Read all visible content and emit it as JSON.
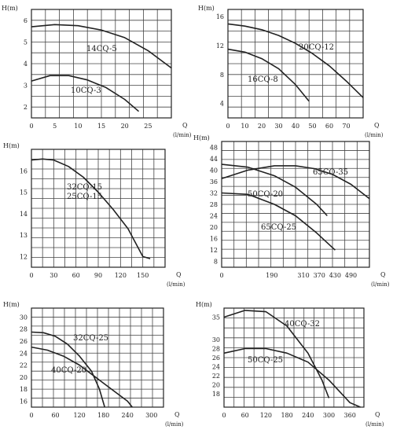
{
  "chart_data": [
    {
      "type": "line",
      "ylabel": "H(m)",
      "xlabel": "Q",
      "xunit": "(l/min)",
      "xlim": [
        0,
        30
      ],
      "ylim": [
        1.5,
        6.5
      ],
      "xticks": [
        0,
        5,
        10,
        15,
        20,
        25
      ],
      "yticks": [
        2,
        3,
        4,
        5,
        6
      ],
      "grid": true,
      "series": [
        {
          "name": "14CQ-5",
          "x": [
            0,
            5,
            10,
            15,
            20,
            25,
            30
          ],
          "y": [
            5.7,
            5.8,
            5.75,
            5.55,
            5.2,
            4.6,
            3.8
          ]
        },
        {
          "name": "10CQ-3",
          "x": [
            0,
            4,
            8,
            12,
            16,
            20,
            23
          ],
          "y": [
            3.2,
            3.45,
            3.45,
            3.25,
            2.9,
            2.35,
            1.8
          ]
        }
      ]
    },
    {
      "type": "line",
      "ylabel": "H(m)",
      "xlabel": "Q",
      "xunit": "(l/min)",
      "xlim": [
        0,
        80
      ],
      "ylim": [
        2,
        17
      ],
      "xticks": [
        0,
        10,
        20,
        30,
        40,
        50,
        60,
        70
      ],
      "yticks": [
        4,
        8,
        12,
        16
      ],
      "grid": true,
      "series": [
        {
          "name": "20CQ-12",
          "x": [
            0,
            10,
            20,
            30,
            40,
            50,
            60,
            70,
            80
          ],
          "y": [
            15.0,
            14.7,
            14.2,
            13.4,
            12.3,
            10.9,
            9.2,
            7.1,
            4.8
          ]
        },
        {
          "name": "16CQ-8",
          "x": [
            0,
            10,
            20,
            30,
            40,
            48
          ],
          "y": [
            11.5,
            11.1,
            10.2,
            8.8,
            6.6,
            4.3
          ]
        }
      ]
    },
    {
      "type": "line",
      "ylabel": "H(m)",
      "xlabel": "Q",
      "xunit": "(l/min)",
      "xlim": [
        0,
        180
      ],
      "ylim": [
        11.5,
        17
      ],
      "xticks": [
        0,
        30,
        60,
        90,
        120,
        150
      ],
      "yticks": [
        12,
        13,
        14,
        15,
        16
      ],
      "grid": true,
      "series": [
        {
          "name": "32CQ-15",
          "x": [
            0,
            15,
            30,
            50,
            70,
            90,
            110,
            130,
            150,
            160
          ],
          "y": [
            16.5,
            16.55,
            16.5,
            16.2,
            15.7,
            15.0,
            14.2,
            13.3,
            12.0,
            11.9
          ]
        }
      ],
      "labels": [
        "32CQ-15",
        "25CQ-15"
      ]
    },
    {
      "type": "line",
      "ylabel": "H(m)",
      "xlabel": "Q",
      "xunit": "(l/min)",
      "xlim": [
        0,
        560
      ],
      "ylim": [
        6,
        50
      ],
      "xticks": [
        0,
        190,
        310,
        370,
        430,
        490
      ],
      "yticks": [
        8,
        12,
        16,
        20,
        24,
        28,
        32,
        36,
        40,
        44,
        48
      ],
      "grid": true,
      "series": [
        {
          "name": "65CQ-35",
          "x": [
            0,
            100,
            200,
            280,
            350,
            420,
            490,
            560
          ],
          "y": [
            37,
            40,
            41.5,
            41.5,
            40.5,
            38.5,
            35,
            30
          ]
        },
        {
          "name": "50CQ-20",
          "x": [
            0,
            100,
            200,
            280,
            360,
            400
          ],
          "y": [
            42,
            41,
            38,
            34,
            28,
            24
          ]
        },
        {
          "name": "65CQ-25",
          "x": [
            0,
            100,
            200,
            280,
            360,
            430
          ],
          "y": [
            32,
            31.5,
            28,
            24,
            18,
            12
          ]
        }
      ]
    },
    {
      "type": "line",
      "ylabel": "H(m)",
      "xlabel": "Q",
      "xunit": "(l/min)",
      "xlim": [
        0,
        330
      ],
      "ylim": [
        15,
        31.5
      ],
      "xticks": [
        0,
        60,
        120,
        180,
        240,
        300
      ],
      "yticks": [
        16,
        18,
        20,
        22,
        24,
        26,
        28,
        30
      ],
      "grid": true,
      "series": [
        {
          "name": "32CQ-25",
          "x": [
            0,
            30,
            60,
            90,
            120,
            150,
            170,
            183
          ],
          "y": [
            27.5,
            27.4,
            26.8,
            25.5,
            23.5,
            21,
            18,
            15
          ]
        },
        {
          "name": "40CQ-20",
          "x": [
            0,
            40,
            80,
            120,
            160,
            200,
            240,
            252
          ],
          "y": [
            25,
            24.5,
            23.5,
            22,
            20,
            18,
            16,
            15
          ]
        }
      ]
    },
    {
      "type": "line",
      "ylabel": "H(m)",
      "xlabel": "Q",
      "xunit": "(l/min)",
      "xlim": [
        0,
        400
      ],
      "ylim": [
        15,
        37
      ],
      "xticks": [
        0,
        60,
        120,
        180,
        240,
        300,
        360
      ],
      "yticks": [
        18,
        20,
        22,
        24,
        26,
        28,
        30,
        35
      ],
      "grid": true,
      "series": [
        {
          "name": "40CQ-32",
          "x": [
            0,
            60,
            120,
            180,
            240,
            280,
            300
          ],
          "y": [
            35,
            36.5,
            36.2,
            33,
            27,
            21,
            17
          ]
        },
        {
          "name": "50CQ-25",
          "x": [
            0,
            60,
            120,
            180,
            240,
            300,
            360,
            390
          ],
          "y": [
            27,
            28,
            28,
            27,
            25,
            21,
            16,
            15
          ]
        }
      ]
    }
  ]
}
